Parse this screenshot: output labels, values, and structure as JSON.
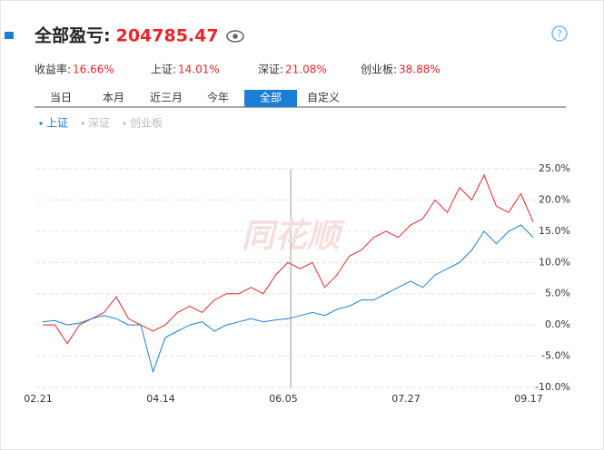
{
  "header": {
    "title": "全部盈亏:",
    "value": "204785.47"
  },
  "stats": [
    {
      "label": "收益率:",
      "value": "16.66%"
    },
    {
      "label": "上证:",
      "value": "14.01%"
    },
    {
      "label": "深证:",
      "value": "21.08%"
    },
    {
      "label": "创业板:",
      "value": "38.88%"
    }
  ],
  "tabs": [
    {
      "label": "当日",
      "active": false
    },
    {
      "label": "本月",
      "active": false
    },
    {
      "label": "近三月",
      "active": false
    },
    {
      "label": "今年",
      "active": false
    },
    {
      "label": "全部",
      "active": true
    },
    {
      "label": "自定义",
      "active": false
    }
  ],
  "watermark": "同花顺",
  "chart_data": {
    "type": "line",
    "legend": [
      {
        "name": "上证",
        "active": true,
        "color": "#1a7fd4"
      },
      {
        "name": "深证",
        "active": false,
        "color": "#bbbbbb"
      },
      {
        "name": "创业板",
        "active": false,
        "color": "#bbbbbb"
      }
    ],
    "categories": [
      "02.21",
      null,
      null,
      null,
      null,
      null,
      null,
      null,
      null,
      null,
      "04.14",
      null,
      null,
      null,
      null,
      null,
      null,
      null,
      null,
      null,
      "06.05",
      null,
      null,
      null,
      null,
      null,
      null,
      null,
      null,
      null,
      "07.27",
      null,
      null,
      null,
      null,
      null,
      null,
      null,
      null,
      null,
      "09.17"
    ],
    "series": [
      {
        "color": "#e8262a",
        "values": [
          0,
          0,
          -3,
          0,
          1,
          2,
          4.5,
          1,
          0,
          -1,
          0,
          2,
          3,
          2,
          4,
          5,
          5,
          6,
          5,
          8,
          10,
          9,
          10,
          6,
          8,
          11,
          12,
          14,
          15,
          14,
          16,
          17,
          20,
          18,
          22,
          20,
          24,
          19,
          18,
          21,
          16.5
        ]
      },
      {
        "color": "#1a7fd4",
        "values": [
          0.5,
          0.7,
          0,
          0.3,
          1,
          1.5,
          1,
          0,
          0,
          -7.5,
          -2,
          -1,
          0,
          0.5,
          -1,
          0,
          0.5,
          1,
          0.5,
          0.8,
          1,
          1.5,
          2,
          1.5,
          2.5,
          3,
          4,
          4,
          5,
          6,
          7,
          6,
          8,
          9,
          10,
          12,
          15,
          13,
          15,
          16,
          14
        ]
      }
    ],
    "ylim": [
      -10,
      25
    ],
    "yticks": [
      {
        "value": 25,
        "label": "25.0%"
      },
      {
        "value": 20,
        "label": "20.0%"
      },
      {
        "value": 15,
        "label": "15.0%"
      },
      {
        "value": 10,
        "label": "10.0%"
      },
      {
        "value": 5,
        "label": "5.0%"
      },
      {
        "value": 0,
        "label": "0.0%"
      },
      {
        "value": -5,
        "label": "-5.0%"
      },
      {
        "value": -10,
        "label": "-10.0%"
      }
    ],
    "grid": true
  }
}
